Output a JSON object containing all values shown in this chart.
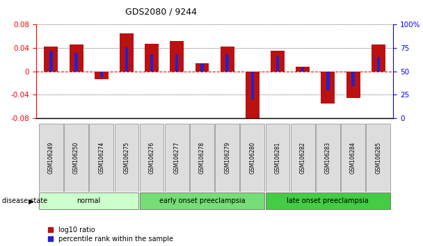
{
  "title": "GDS2080 / 9244",
  "samples": [
    "GSM106249",
    "GSM106250",
    "GSM106274",
    "GSM106275",
    "GSM106276",
    "GSM106277",
    "GSM106278",
    "GSM106279",
    "GSM106280",
    "GSM106281",
    "GSM106282",
    "GSM106283",
    "GSM106284",
    "GSM106285"
  ],
  "log10_ratio": [
    0.042,
    0.046,
    -0.014,
    0.065,
    0.047,
    0.052,
    0.014,
    0.042,
    -0.085,
    0.035,
    0.008,
    -0.055,
    -0.046,
    0.046
  ],
  "percentile_rank": [
    72,
    70,
    44,
    76,
    68,
    68,
    58,
    68,
    20,
    66,
    54,
    30,
    34,
    65
  ],
  "bar_color": "#bb1111",
  "pct_color": "#2222cc",
  "ylim_left": [
    -0.08,
    0.08
  ],
  "ylim_right": [
    0,
    100
  ],
  "yticks_left": [
    -0.08,
    -0.04,
    0,
    0.04,
    0.08
  ],
  "yticks_right": [
    0,
    25,
    50,
    75,
    100
  ],
  "groups": [
    {
      "label": "normal",
      "start": 0,
      "end": 3,
      "color": "#ccffcc"
    },
    {
      "label": "early onset preeclampsia",
      "start": 4,
      "end": 8,
      "color": "#77dd77"
    },
    {
      "label": "late onset preeclampsia",
      "start": 9,
      "end": 13,
      "color": "#44cc44"
    }
  ],
  "disease_state_label": "disease state",
  "legend_log10": "log10 ratio",
  "legend_pct": "percentile rank within the sample",
  "background_color": "#ffffff",
  "plot_bg_color": "#ffffff"
}
